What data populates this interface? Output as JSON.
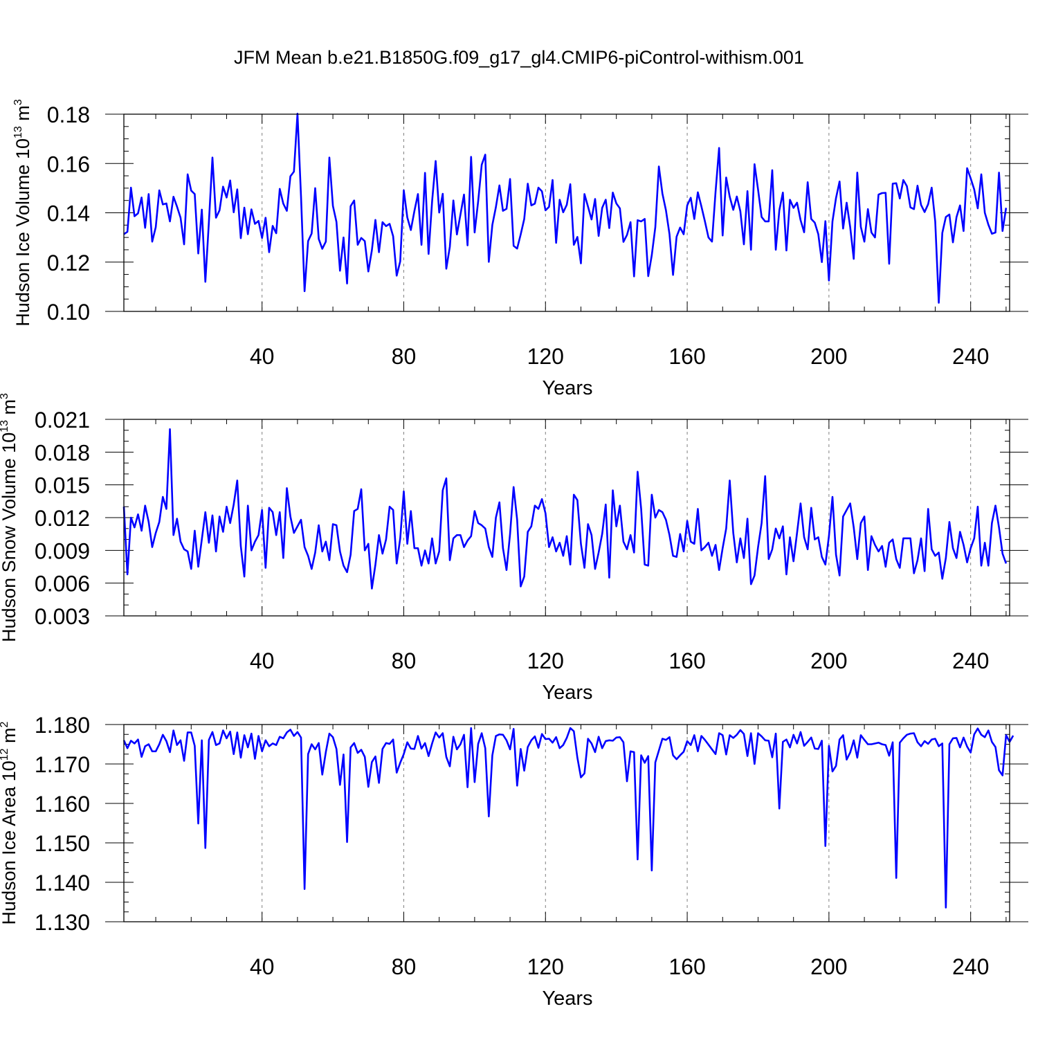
{
  "title": "JFM Mean b.e21.B1850G.f09_g17_gl4.CMIP6-piControl-withism.001",
  "colors": {
    "line": "#0000ff",
    "axis": "#000000",
    "grid": "#7f7f7f"
  },
  "chart_data": [
    {
      "type": "line",
      "name": "ice-volume",
      "ylabel": {
        "main": "Hudson Ice Volume 10",
        "sup": "13",
        "unit": " m",
        "unit_sup": "3"
      },
      "xlabel": "Years",
      "xlim": [
        1,
        251
      ],
      "xticks": [
        40,
        80,
        120,
        160,
        200,
        240
      ],
      "xtick_labels": [
        "40",
        "80",
        "120",
        "160",
        "200",
        "240"
      ],
      "ylim": [
        0.1,
        0.18
      ],
      "yticks": [
        0.1,
        0.12,
        0.14,
        0.16,
        0.18
      ],
      "ytick_labels": [
        "0.10",
        "0.12",
        "0.14",
        "0.16",
        "0.18"
      ],
      "yminor": 0.005,
      "grid": "dashed vertical at major x ticks",
      "series": [
        {
          "name": "Hudson Ice Volume",
          "x_start": 1,
          "values": [
            0.1313,
            0.1323,
            0.1502,
            0.1386,
            0.1398,
            0.1462,
            0.1339,
            0.1476,
            0.1283,
            0.1342,
            0.1491,
            0.1434,
            0.1438,
            0.1365,
            0.1465,
            0.1425,
            0.138,
            0.1272,
            0.1556,
            0.149,
            0.1476,
            0.1235,
            0.1413,
            0.112,
            0.1363,
            0.1624,
            0.138,
            0.141,
            0.1506,
            0.1462,
            0.1531,
            0.1402,
            0.1495,
            0.1297,
            0.1421,
            0.1313,
            0.1414,
            0.1355,
            0.1367,
            0.1298,
            0.138,
            0.124,
            0.1347,
            0.1317,
            0.1497,
            0.1437,
            0.1408,
            0.1548,
            0.1567,
            0.1802,
            0.1466,
            0.1082,
            0.1285,
            0.1316,
            0.15,
            0.1294,
            0.1254,
            0.1283,
            0.1624,
            0.1428,
            0.1363,
            0.1165,
            0.13,
            0.1113,
            0.1427,
            0.145,
            0.127,
            0.1298,
            0.1285,
            0.1162,
            0.1248,
            0.1371,
            0.124,
            0.1362,
            0.1346,
            0.1355,
            0.1305,
            0.1145,
            0.1203,
            0.1491,
            0.1381,
            0.133,
            0.1407,
            0.1476,
            0.127,
            0.1562,
            0.1233,
            0.1447,
            0.161,
            0.1401,
            0.1477,
            0.1173,
            0.1262,
            0.145,
            0.1312,
            0.1393,
            0.1474,
            0.1268,
            0.1627,
            0.132,
            0.1447,
            0.1595,
            0.1636,
            0.1201,
            0.1351,
            0.1423,
            0.1511,
            0.1408,
            0.1416,
            0.1537,
            0.1266,
            0.1255,
            0.1312,
            0.1375,
            0.1518,
            0.143,
            0.1437,
            0.1502,
            0.1487,
            0.141,
            0.1424,
            0.1533,
            0.1278,
            0.1453,
            0.1402,
            0.1432,
            0.1516,
            0.127,
            0.1302,
            0.1195,
            0.1476,
            0.1425,
            0.1373,
            0.1456,
            0.1306,
            0.142,
            0.1453,
            0.1338,
            0.1482,
            0.1438,
            0.1418,
            0.1282,
            0.131,
            0.1362,
            0.1142,
            0.137,
            0.1365,
            0.1375,
            0.1143,
            0.1228,
            0.1342,
            0.1588,
            0.1478,
            0.141,
            0.1313,
            0.1148,
            0.1303,
            0.134,
            0.1313,
            0.143,
            0.1461,
            0.1375,
            0.1483,
            0.1426,
            0.1365,
            0.13,
            0.1283,
            0.1485,
            0.1663,
            0.1308,
            0.1543,
            0.1465,
            0.1412,
            0.1466,
            0.1406,
            0.1272,
            0.1488,
            0.125,
            0.1597,
            0.1494,
            0.1383,
            0.1365,
            0.1365,
            0.1573,
            0.125,
            0.141,
            0.1482,
            0.1247,
            0.1453,
            0.142,
            0.1441,
            0.137,
            0.1321,
            0.1524,
            0.1375,
            0.136,
            0.1313,
            0.12,
            0.1366,
            0.1125,
            0.1365,
            0.146,
            0.1527,
            0.1336,
            0.1441,
            0.1342,
            0.1213,
            0.1563,
            0.1343,
            0.1283,
            0.1415,
            0.132,
            0.13,
            0.1474,
            0.148,
            0.1481,
            0.1193,
            0.1518,
            0.152,
            0.1458,
            0.1533,
            0.1508,
            0.1422,
            0.1415,
            0.151,
            0.1432,
            0.1403,
            0.1435,
            0.1502,
            0.1365,
            0.1035,
            0.1318,
            0.1383,
            0.1393,
            0.128,
            0.1382,
            0.143,
            0.1326,
            0.1581,
            0.154,
            0.1495,
            0.1418,
            0.1556,
            0.14,
            0.1352,
            0.1315,
            0.132,
            0.1563,
            0.1326,
            0.142
          ]
        }
      ]
    },
    {
      "type": "line",
      "name": "snow-volume",
      "ylabel": {
        "main": "Hudson Snow Volume 10",
        "sup": "13",
        "unit": " m",
        "unit_sup": "3"
      },
      "xlabel": "Years",
      "xlim": [
        1,
        251
      ],
      "xticks": [
        40,
        80,
        120,
        160,
        200,
        240
      ],
      "xtick_labels": [
        "40",
        "80",
        "120",
        "160",
        "200",
        "240"
      ],
      "ylim": [
        0.003,
        0.021
      ],
      "yticks": [
        0.003,
        0.006,
        0.009,
        0.012,
        0.015,
        0.018,
        0.021
      ],
      "ytick_labels": [
        "0.003",
        "0.006",
        "0.009",
        "0.012",
        "0.015",
        "0.018",
        "0.021"
      ],
      "yminor": 0.001,
      "grid": "dashed vertical at major x ticks",
      "series": [
        {
          "name": "Hudson Snow Volume",
          "x_start": 1,
          "values": [
            0.013,
            0.0068,
            0.012,
            0.0111,
            0.0123,
            0.0108,
            0.0131,
            0.0116,
            0.0093,
            0.0106,
            0.0116,
            0.0139,
            0.0128,
            0.0201,
            0.0104,
            0.0119,
            0.0098,
            0.0091,
            0.0089,
            0.0073,
            0.0108,
            0.0075,
            0.01,
            0.0125,
            0.0097,
            0.0122,
            0.0089,
            0.0121,
            0.0107,
            0.013,
            0.0115,
            0.0132,
            0.0154,
            0.0094,
            0.0066,
            0.0131,
            0.009,
            0.0098,
            0.0104,
            0.0127,
            0.0074,
            0.0129,
            0.0125,
            0.0104,
            0.0125,
            0.0083,
            0.0147,
            0.0121,
            0.0106,
            0.0112,
            0.0118,
            0.0093,
            0.0085,
            0.0073,
            0.0088,
            0.0113,
            0.0089,
            0.0098,
            0.0081,
            0.0114,
            0.0113,
            0.0089,
            0.0076,
            0.007,
            0.0086,
            0.0126,
            0.0128,
            0.0146,
            0.009,
            0.0096,
            0.0055,
            0.0077,
            0.0104,
            0.0087,
            0.01,
            0.013,
            0.0127,
            0.0078,
            0.0101,
            0.0144,
            0.0096,
            0.0126,
            0.0092,
            0.0092,
            0.0076,
            0.009,
            0.0078,
            0.0101,
            0.0078,
            0.0089,
            0.0145,
            0.0156,
            0.0081,
            0.0101,
            0.0104,
            0.0104,
            0.0093,
            0.0099,
            0.0103,
            0.0126,
            0.0115,
            0.0113,
            0.011,
            0.0093,
            0.0084,
            0.012,
            0.0134,
            0.0092,
            0.0072,
            0.0105,
            0.0148,
            0.0118,
            0.0057,
            0.0066,
            0.0107,
            0.0112,
            0.0131,
            0.0128,
            0.0137,
            0.0124,
            0.0093,
            0.0102,
            0.0089,
            0.0097,
            0.0085,
            0.0103,
            0.0077,
            0.0141,
            0.0136,
            0.0096,
            0.0074,
            0.0114,
            0.0104,
            0.0073,
            0.0088,
            0.0105,
            0.0132,
            0.0065,
            0.0145,
            0.0112,
            0.0131,
            0.0098,
            0.0091,
            0.0104,
            0.0088,
            0.0162,
            0.0128,
            0.0077,
            0.0076,
            0.0141,
            0.012,
            0.0127,
            0.0125,
            0.0118,
            0.0104,
            0.0085,
            0.0084,
            0.0105,
            0.0089,
            0.0117,
            0.0098,
            0.0096,
            0.0128,
            0.009,
            0.0093,
            0.0097,
            0.0085,
            0.0095,
            0.0072,
            0.0092,
            0.011,
            0.0154,
            0.0106,
            0.0079,
            0.0101,
            0.0083,
            0.0119,
            0.0059,
            0.0067,
            0.0093,
            0.0115,
            0.0158,
            0.0082,
            0.0091,
            0.011,
            0.0101,
            0.0112,
            0.0068,
            0.0102,
            0.008,
            0.0106,
            0.0133,
            0.0102,
            0.0091,
            0.0129,
            0.01,
            0.0102,
            0.0084,
            0.0077,
            0.0103,
            0.0139,
            0.0086,
            0.0067,
            0.0121,
            0.0127,
            0.0133,
            0.0111,
            0.0082,
            0.0115,
            0.0121,
            0.0072,
            0.0103,
            0.0095,
            0.0089,
            0.0094,
            0.0075,
            0.0097,
            0.01,
            0.0082,
            0.0074,
            0.0101,
            0.0101,
            0.0101,
            0.0069,
            0.0081,
            0.0101,
            0.0071,
            0.0128,
            0.0091,
            0.0085,
            0.0088,
            0.0064,
            0.0083,
            0.0116,
            0.0092,
            0.0083,
            0.0107,
            0.0095,
            0.0079,
            0.0092,
            0.0101,
            0.013,
            0.0076,
            0.0097,
            0.0076,
            0.0115,
            0.0131,
            0.0111,
            0.0087,
            0.0078
          ]
        }
      ]
    },
    {
      "type": "line",
      "name": "ice-area",
      "ylabel": {
        "main": "Hudson Ice Area 10",
        "sup": "12",
        "unit": " m",
        "unit_sup": "2"
      },
      "xlabel": "Years",
      "xlim": [
        1,
        251
      ],
      "xticks": [
        40,
        80,
        120,
        160,
        200,
        240
      ],
      "xtick_labels": [
        "40",
        "80",
        "120",
        "160",
        "200",
        "240"
      ],
      "ylim": [
        1.13,
        1.18
      ],
      "yticks": [
        1.13,
        1.14,
        1.15,
        1.16,
        1.17,
        1.18
      ],
      "ytick_labels": [
        "1.130",
        "1.140",
        "1.150",
        "1.160",
        "1.170",
        "1.180"
      ],
      "yminor": 0.0025,
      "grid": "dashed vertical at major x ticks",
      "series": [
        {
          "name": "Hudson Ice Area",
          "x_start": 1,
          "values": [
            1.176,
            1.174,
            1.1759,
            1.1752,
            1.1762,
            1.1718,
            1.1745,
            1.175,
            1.1732,
            1.1732,
            1.175,
            1.1774,
            1.1758,
            1.173,
            1.1785,
            1.1748,
            1.176,
            1.1708,
            1.178,
            1.178,
            1.1746,
            1.1549,
            1.176,
            1.1487,
            1.1761,
            1.1781,
            1.1748,
            1.1752,
            1.1785,
            1.1765,
            1.1782,
            1.1725,
            1.178,
            1.1716,
            1.1773,
            1.1742,
            1.1777,
            1.1713,
            1.1771,
            1.1732,
            1.176,
            1.1745,
            1.1752,
            1.1748,
            1.1769,
            1.1765,
            1.178,
            1.1787,
            1.1771,
            1.1781,
            1.1767,
            1.1383,
            1.1725,
            1.175,
            1.1737,
            1.1753,
            1.1673,
            1.173,
            1.1777,
            1.1768,
            1.1738,
            1.1647,
            1.1724,
            1.1502,
            1.1742,
            1.1753,
            1.1728,
            1.1736,
            1.1718,
            1.1642,
            1.1705,
            1.1719,
            1.1652,
            1.1738,
            1.1753,
            1.1751,
            1.1762,
            1.1678,
            1.1703,
            1.1725,
            1.1755,
            1.1739,
            1.1738,
            1.1771,
            1.1739,
            1.1753,
            1.172,
            1.1752,
            1.178,
            1.1767,
            1.1778,
            1.1718,
            1.1694,
            1.1769,
            1.1737,
            1.175,
            1.1774,
            1.1641,
            1.1791,
            1.1654,
            1.1751,
            1.1778,
            1.174,
            1.1567,
            1.1722,
            1.1771,
            1.1775,
            1.1774,
            1.176,
            1.1737,
            1.1789,
            1.1645,
            1.1738,
            1.1683,
            1.1743,
            1.176,
            1.177,
            1.1741,
            1.1776,
            1.1763,
            1.1764,
            1.1754,
            1.1768,
            1.174,
            1.1748,
            1.1766,
            1.1791,
            1.1783,
            1.1716,
            1.1666,
            1.1676,
            1.1764,
            1.1752,
            1.173,
            1.1769,
            1.174,
            1.1758,
            1.176,
            1.1759,
            1.1767,
            1.1768,
            1.1755,
            1.1656,
            1.1732,
            1.173,
            1.1458,
            1.1722,
            1.1703,
            1.172,
            1.143,
            1.1704,
            1.1734,
            1.1764,
            1.1761,
            1.1768,
            1.1722,
            1.1712,
            1.1722,
            1.1731,
            1.1758,
            1.1748,
            1.1773,
            1.1732,
            1.1771,
            1.1761,
            1.1749,
            1.1737,
            1.1725,
            1.1778,
            1.1773,
            1.1724,
            1.1773,
            1.1766,
            1.1774,
            1.1786,
            1.1776,
            1.172,
            1.1778,
            1.17,
            1.1778,
            1.177,
            1.176,
            1.1759,
            1.1717,
            1.1777,
            1.1587,
            1.1756,
            1.1762,
            1.1742,
            1.1774,
            1.1752,
            1.1781,
            1.1746,
            1.1756,
            1.1767,
            1.1739,
            1.1738,
            1.1759,
            1.1492,
            1.1746,
            1.1681,
            1.1695,
            1.1762,
            1.1773,
            1.1711,
            1.1729,
            1.176,
            1.1716,
            1.1773,
            1.1761,
            1.175,
            1.175,
            1.1752,
            1.1754,
            1.175,
            1.1748,
            1.1721,
            1.1755,
            1.1411,
            1.1754,
            1.1765,
            1.1774,
            1.1777,
            1.1778,
            1.1755,
            1.1745,
            1.1758,
            1.1751,
            1.1762,
            1.1764,
            1.1745,
            1.1752,
            1.1336,
            1.175,
            1.1765,
            1.1766,
            1.1742,
            1.1767,
            1.1744,
            1.1729,
            1.1775,
            1.179,
            1.1774,
            1.1768,
            1.1785,
            1.1756,
            1.1743,
            1.1684,
            1.1671,
            1.1773,
            1.1756,
            1.1772
          ]
        }
      ]
    }
  ]
}
